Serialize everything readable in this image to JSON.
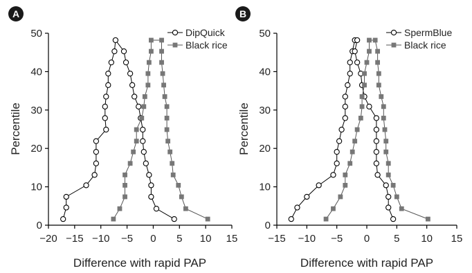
{
  "chart_data": [
    {
      "panel_label": "A",
      "type": "line",
      "xlabel": "Difference with rapid PAP",
      "ylabel": "Percentile",
      "xlim": [
        -20,
        15
      ],
      "ylim": [
        0,
        50
      ],
      "xticks": [
        -20,
        -15,
        -10,
        -5,
        0,
        5,
        10,
        15
      ],
      "yticks": [
        0,
        10,
        20,
        30,
        40,
        50
      ],
      "xtick_labels": [
        "−20",
        "−15",
        "−10",
        "−5",
        "0",
        "5",
        "10",
        "15"
      ],
      "ytick_labels": [
        "0",
        "10",
        "20",
        "30",
        "40",
        "50"
      ],
      "legend_position": "top-right",
      "series": [
        {
          "name": "DipQuick",
          "marker": "open-circle",
          "color": "#000000",
          "points": [
            [
              -17.2,
              1.6
            ],
            [
              -16.6,
              4.6
            ],
            [
              -16.6,
              7.4
            ],
            [
              -12.8,
              10.4
            ],
            [
              -11.2,
              13.1
            ],
            [
              -10.9,
              16.1
            ],
            [
              -10.9,
              19.1
            ],
            [
              -10.9,
              21.9
            ],
            [
              -9.0,
              24.9
            ],
            [
              -9.2,
              27.9
            ],
            [
              -9.2,
              30.9
            ],
            [
              -9.0,
              33.5
            ],
            [
              -8.6,
              36.5
            ],
            [
              -8.6,
              39.5
            ],
            [
              -8.0,
              42.4
            ],
            [
              -7.4,
              45.3
            ],
            [
              -7.2,
              48.2
            ],
            [
              -5.6,
              45.3
            ],
            [
              -5.2,
              42.4
            ],
            [
              -4.4,
              39.5
            ],
            [
              -4.0,
              36.5
            ],
            [
              -3.6,
              33.5
            ],
            [
              -2.8,
              30.9
            ],
            [
              -2.4,
              27.9
            ],
            [
              -2.0,
              24.9
            ],
            [
              -2.0,
              21.9
            ],
            [
              -1.8,
              19.1
            ],
            [
              -1.4,
              16.1
            ],
            [
              -0.8,
              13.1
            ],
            [
              -0.4,
              10.4
            ],
            [
              -0.4,
              7.4
            ],
            [
              0.6,
              4.3
            ],
            [
              4.0,
              1.6
            ]
          ]
        },
        {
          "name": "Black rice",
          "marker": "filled-square",
          "color": "#777777",
          "points": [
            [
              -7.6,
              1.6
            ],
            [
              -6.4,
              4.3
            ],
            [
              -5.4,
              7.4
            ],
            [
              -5.4,
              10.4
            ],
            [
              -5.4,
              13.1
            ],
            [
              -4.4,
              16.1
            ],
            [
              -3.8,
              19.1
            ],
            [
              -3.2,
              21.9
            ],
            [
              -3.2,
              24.9
            ],
            [
              -2.2,
              27.9
            ],
            [
              -1.8,
              30.9
            ],
            [
              -1.6,
              33.5
            ],
            [
              -1.0,
              36.5
            ],
            [
              -1.0,
              39.5
            ],
            [
              -0.8,
              42.4
            ],
            [
              -0.4,
              45.3
            ],
            [
              -0.4,
              48.2
            ],
            [
              1.6,
              48.2
            ],
            [
              1.6,
              45.3
            ],
            [
              1.6,
              42.4
            ],
            [
              1.8,
              39.5
            ],
            [
              2.0,
              36.5
            ],
            [
              2.2,
              33.5
            ],
            [
              2.6,
              30.9
            ],
            [
              2.6,
              27.9
            ],
            [
              2.6,
              24.9
            ],
            [
              2.8,
              21.9
            ],
            [
              3.2,
              19.1
            ],
            [
              3.6,
              16.1
            ],
            [
              3.8,
              13.1
            ],
            [
              4.8,
              10.4
            ],
            [
              5.4,
              7.4
            ],
            [
              6.2,
              4.3
            ],
            [
              10.4,
              1.6
            ]
          ]
        }
      ]
    },
    {
      "panel_label": "B",
      "type": "line",
      "xlabel": "Difference with rapid PAP",
      "ylabel": "Percentile",
      "xlim": [
        -15,
        15
      ],
      "ylim": [
        0,
        50
      ],
      "xticks": [
        -15,
        -10,
        -5,
        0,
        5,
        10,
        15
      ],
      "yticks": [
        0,
        10,
        20,
        30,
        40,
        50
      ],
      "xtick_labels": [
        "−15",
        "−10",
        "−5",
        "0",
        "5",
        "10",
        "15"
      ],
      "ytick_labels": [
        "0",
        "10",
        "20",
        "30",
        "40",
        "50"
      ],
      "legend_position": "top-right",
      "series": [
        {
          "name": "SpermBlue",
          "marker": "open-circle",
          "color": "#000000",
          "points": [
            [
              -12.6,
              1.6
            ],
            [
              -11.6,
              4.6
            ],
            [
              -10.0,
              7.4
            ],
            [
              -8.0,
              10.4
            ],
            [
              -5.6,
              13.1
            ],
            [
              -5.0,
              16.1
            ],
            [
              -5.0,
              19.1
            ],
            [
              -4.6,
              21.9
            ],
            [
              -4.2,
              24.9
            ],
            [
              -3.6,
              27.9
            ],
            [
              -3.6,
              30.9
            ],
            [
              -3.6,
              33.5
            ],
            [
              -3.2,
              36.5
            ],
            [
              -2.8,
              39.5
            ],
            [
              -2.8,
              42.4
            ],
            [
              -2.4,
              45.3
            ],
            [
              -2.0,
              48.2
            ],
            [
              -1.6,
              48.2
            ],
            [
              -2.0,
              45.3
            ],
            [
              -1.6,
              42.4
            ],
            [
              -1.0,
              39.5
            ],
            [
              -0.8,
              36.5
            ],
            [
              -0.4,
              33.5
            ],
            [
              0.4,
              30.9
            ],
            [
              1.6,
              27.9
            ],
            [
              1.6,
              24.9
            ],
            [
              1.6,
              21.9
            ],
            [
              1.6,
              19.1
            ],
            [
              1.6,
              16.1
            ],
            [
              1.8,
              13.1
            ],
            [
              3.2,
              10.4
            ],
            [
              3.6,
              7.4
            ],
            [
              3.6,
              4.6
            ],
            [
              4.4,
              1.6
            ]
          ]
        },
        {
          "name": "Black rice",
          "marker": "filled-square",
          "color": "#777777",
          "points": [
            [
              -6.8,
              1.6
            ],
            [
              -5.6,
              4.3
            ],
            [
              -4.4,
              7.4
            ],
            [
              -3.6,
              10.4
            ],
            [
              -3.6,
              13.1
            ],
            [
              -2.8,
              16.1
            ],
            [
              -2.4,
              19.1
            ],
            [
              -2.0,
              21.9
            ],
            [
              -1.6,
              24.9
            ],
            [
              -1.0,
              27.9
            ],
            [
              -0.8,
              30.9
            ],
            [
              -0.8,
              33.5
            ],
            [
              -0.4,
              36.5
            ],
            [
              -0.4,
              39.5
            ],
            [
              0.0,
              42.4
            ],
            [
              0.4,
              45.3
            ],
            [
              0.4,
              48.2
            ],
            [
              1.4,
              48.2
            ],
            [
              1.8,
              45.3
            ],
            [
              1.8,
              42.4
            ],
            [
              2.0,
              39.5
            ],
            [
              2.0,
              36.5
            ],
            [
              2.4,
              33.5
            ],
            [
              2.8,
              30.9
            ],
            [
              2.8,
              27.9
            ],
            [
              3.0,
              24.9
            ],
            [
              3.2,
              21.9
            ],
            [
              3.2,
              19.1
            ],
            [
              3.6,
              16.1
            ],
            [
              3.6,
              13.1
            ],
            [
              4.4,
              10.4
            ],
            [
              5.0,
              7.4
            ],
            [
              5.8,
              4.3
            ],
            [
              10.2,
              1.6
            ]
          ]
        }
      ]
    }
  ]
}
